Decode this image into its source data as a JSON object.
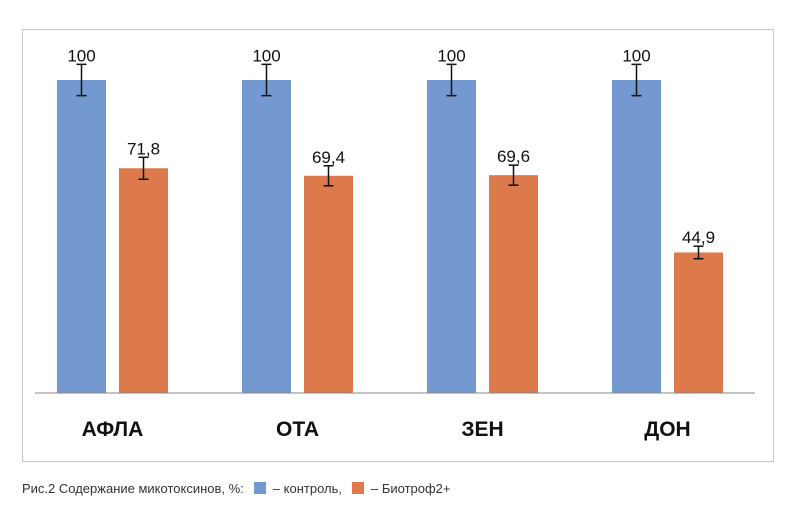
{
  "caption": {
    "prefix": "Рис.2  Содержание микотоксинов, %:",
    "legend_control": "– контроль,",
    "legend_treatment": "– Биотроф2+"
  },
  "colors": {
    "control": "#7399d0",
    "treatment": "#dd7a4b",
    "axis": "#888888",
    "error_bar": "#111111"
  },
  "chart_data": {
    "type": "bar",
    "categories": [
      "АФЛА",
      "ОТА",
      "ЗЕН",
      "ДОН"
    ],
    "series": [
      {
        "name": "контроль",
        "values": [
          100,
          100,
          100,
          100
        ],
        "labels": [
          "100",
          "100",
          "100",
          "100"
        ],
        "error": [
          5,
          5,
          5,
          5
        ]
      },
      {
        "name": "Биотроф2+",
        "values": [
          71.8,
          69.4,
          69.6,
          44.9
        ],
        "labels": [
          "71,8",
          "69,4",
          "69,6",
          "44,9"
        ],
        "error": [
          3.5,
          3.2,
          3.2,
          2
        ]
      }
    ],
    "ylim": [
      0,
      100
    ],
    "grid": false,
    "legend": "bottom"
  }
}
